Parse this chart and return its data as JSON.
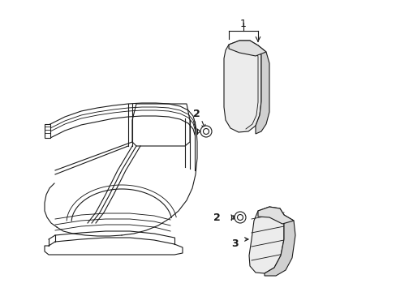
{
  "background_color": "#ffffff",
  "line_color": "#1a1a1a",
  "line_width": 0.8,
  "fig_width": 4.89,
  "fig_height": 3.6,
  "dpi": 100,
  "label_1": "1",
  "label_2": "2",
  "label_3": "3"
}
